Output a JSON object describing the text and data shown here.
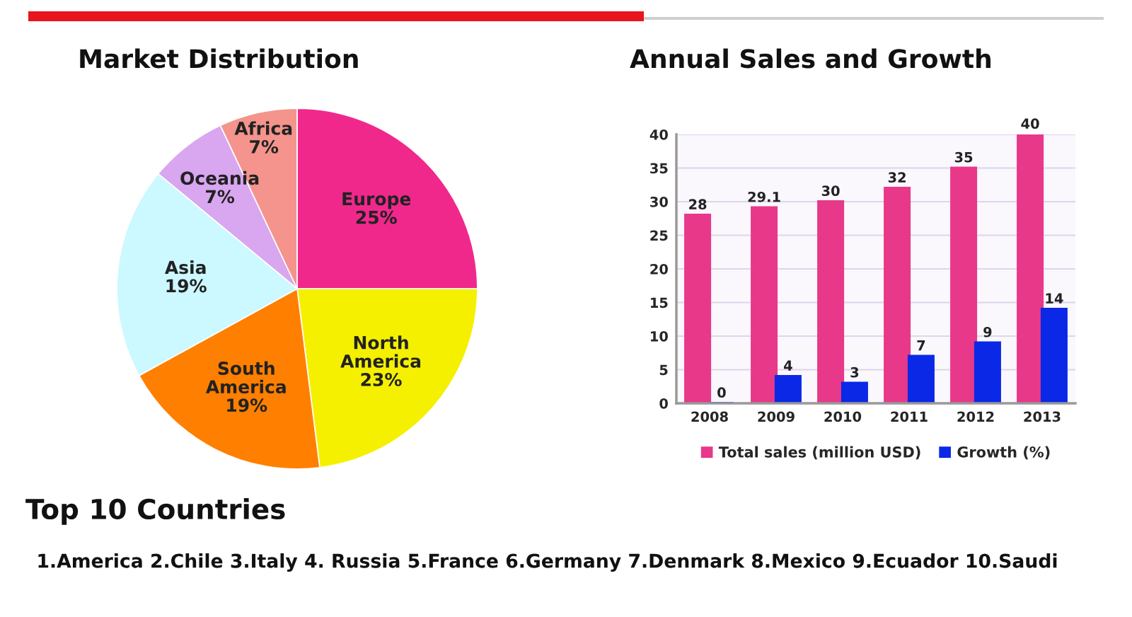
{
  "chart_data": [
    {
      "type": "pie",
      "title": "Market Distribution",
      "categories": [
        "Europe",
        "North America",
        "South America",
        "Asia",
        "Oceania",
        "Africa"
      ],
      "values": [
        25,
        23,
        19,
        19,
        7,
        7
      ],
      "value_labels": [
        "25%",
        "23%",
        "19%",
        "19%",
        "7%",
        "7%"
      ],
      "colors": [
        "#f0288c",
        "#f5f000",
        "#ff7f00",
        "#ccf8ff",
        "#d9a6f0",
        "#f4948c"
      ]
    },
    {
      "type": "bar",
      "title": "Annual Sales and Growth",
      "categories": [
        "2008",
        "2009",
        "2010",
        "2011",
        "2012",
        "2013"
      ],
      "series": [
        {
          "name": "Total sales (million USD)",
          "color": "#e8388a",
          "values": [
            28,
            29.1,
            30,
            32,
            35,
            40
          ]
        },
        {
          "name": "Growth (%)",
          "color": "#0a28e6",
          "values": [
            0,
            4,
            3,
            7,
            9,
            14
          ]
        }
      ],
      "ylim": [
        0,
        40
      ],
      "yticks": [
        0,
        5,
        10,
        15,
        20,
        25,
        30,
        35,
        40
      ],
      "grid": "y",
      "legend": "bottom",
      "data_labels": true
    },
    {
      "type": "other",
      "title": "Top 10 Countries",
      "annotations": [
        "1.America 2.Chile 3.Italy 4. Russia 5.France 6.Germany 7.Denmark 8.Mexico 9.Ecuador 10.Saudi"
      ]
    }
  ]
}
